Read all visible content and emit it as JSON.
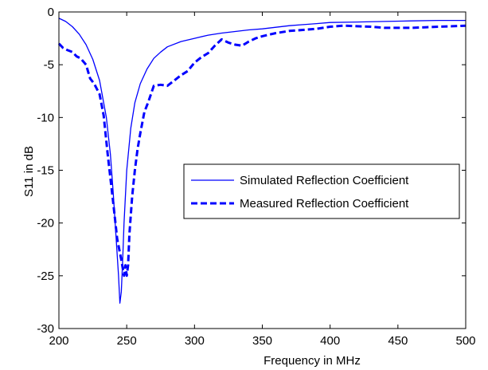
{
  "chart_data": {
    "type": "line",
    "title": "",
    "xlabel": "Frequency in MHz",
    "ylabel": "S11 in dB",
    "xlim": [
      200,
      500
    ],
    "ylim": [
      -30,
      0
    ],
    "xticks": [
      200,
      250,
      300,
      350,
      400,
      450,
      500
    ],
    "yticks": [
      0,
      -5,
      -10,
      -15,
      -20,
      -25,
      -30
    ],
    "xtick_labels": [
      "200",
      "250",
      "300",
      "350",
      "400",
      "450",
      "500"
    ],
    "ytick_labels": [
      "0",
      "-5",
      "-10",
      "-15",
      "-20",
      "-25",
      "-30"
    ],
    "grid": false,
    "legend_position": "center-right",
    "series": [
      {
        "name": "Simulated Reflection Coefficient",
        "style": "solid",
        "color": "#0000ff",
        "x": [
          200,
          205,
          210,
          215,
          220,
          225,
          230,
          235,
          238,
          240,
          242,
          244,
          245,
          246,
          247,
          248,
          250,
          253,
          256,
          260,
          265,
          270,
          275,
          280,
          290,
          300,
          310,
          320,
          330,
          340,
          350,
          360,
          370,
          380,
          390,
          400,
          420,
          440,
          460,
          480,
          500
        ],
        "y": [
          -0.6,
          -0.9,
          -1.4,
          -2.1,
          -3.1,
          -4.5,
          -6.5,
          -10.0,
          -13.5,
          -17.0,
          -21.0,
          -25.0,
          -27.6,
          -26.5,
          -23.5,
          -20.0,
          -15.0,
          -11.0,
          -8.6,
          -6.8,
          -5.4,
          -4.4,
          -3.8,
          -3.3,
          -2.8,
          -2.5,
          -2.2,
          -2.0,
          -1.85,
          -1.7,
          -1.6,
          -1.45,
          -1.3,
          -1.2,
          -1.1,
          -1.0,
          -0.95,
          -0.9,
          -0.85,
          -0.8,
          -0.8
        ]
      },
      {
        "name": "Measured Reflection Coefficient",
        "style": "dashed",
        "color": "#0000ff",
        "x": [
          200,
          203,
          206,
          210,
          213,
          216,
          220,
          223,
          226,
          230,
          233,
          236,
          240,
          243,
          246,
          248,
          249,
          250,
          251,
          252,
          254,
          256,
          258,
          260,
          263,
          266,
          270,
          275,
          280,
          285,
          290,
          295,
          300,
          305,
          310,
          315,
          320,
          325,
          330,
          335,
          340,
          345,
          350,
          360,
          370,
          380,
          390,
          400,
          410,
          420,
          430,
          440,
          450,
          460,
          470,
          480,
          490,
          500
        ],
        "y": [
          -3.0,
          -3.4,
          -3.6,
          -3.8,
          -4.2,
          -4.4,
          -5.0,
          -6.3,
          -6.8,
          -7.8,
          -9.8,
          -13.5,
          -18.0,
          -21.5,
          -23.5,
          -25.0,
          -24.0,
          -25.0,
          -24.0,
          -21.0,
          -17.5,
          -15.0,
          -13.0,
          -11.5,
          -9.5,
          -8.5,
          -7.0,
          -6.9,
          -7.0,
          -6.5,
          -6.0,
          -5.6,
          -4.8,
          -4.3,
          -3.9,
          -3.2,
          -2.6,
          -2.9,
          -3.1,
          -3.2,
          -2.8,
          -2.5,
          -2.3,
          -2.0,
          -1.8,
          -1.7,
          -1.6,
          -1.4,
          -1.3,
          -1.35,
          -1.4,
          -1.5,
          -1.5,
          -1.5,
          -1.45,
          -1.4,
          -1.35,
          -1.3
        ]
      }
    ]
  }
}
